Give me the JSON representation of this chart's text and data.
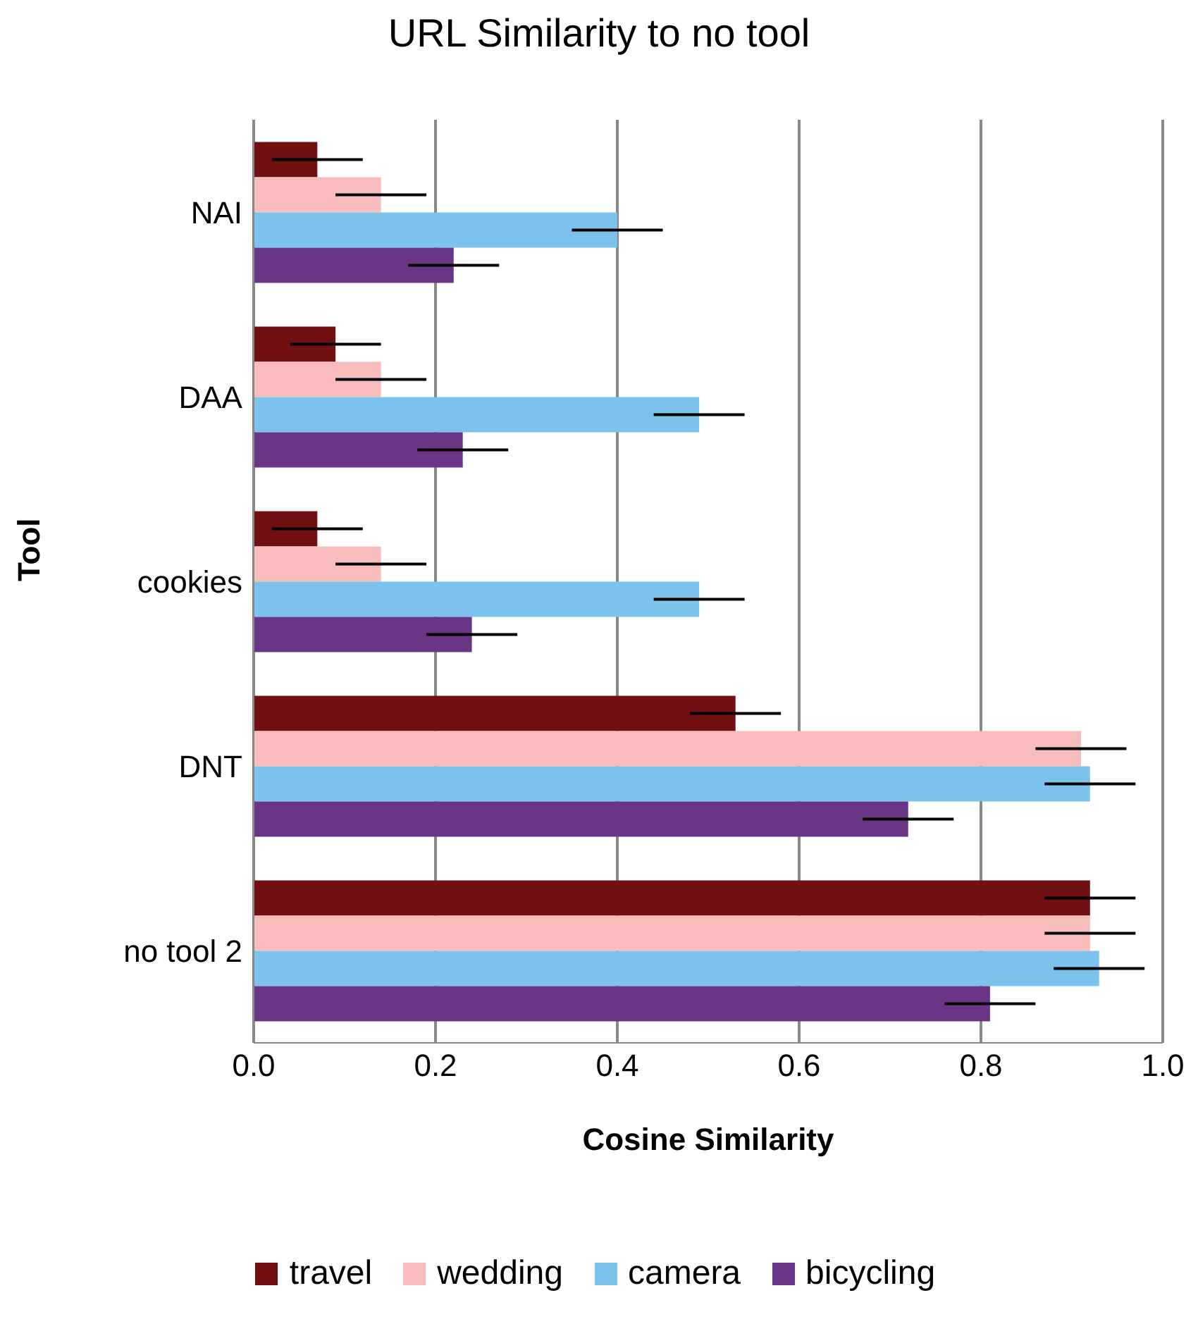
{
  "chart_data": {
    "type": "bar",
    "orientation": "horizontal",
    "title": "URL Similarity to no tool",
    "xlabel": "Cosine Similarity",
    "ylabel": "Tool",
    "categories": [
      "NAI",
      "DAA",
      "cookies",
      "DNT",
      "no tool 2"
    ],
    "series": [
      {
        "name": "travel",
        "color": "#701013",
        "values": [
          0.07,
          0.09,
          0.07,
          0.53,
          0.92
        ],
        "errors": [
          0.05,
          0.05,
          0.05,
          0.05,
          0.05
        ]
      },
      {
        "name": "wedding",
        "color": "#f7bcbb",
        "values": [
          0.14,
          0.14,
          0.14,
          0.91,
          0.92
        ],
        "errors": [
          0.05,
          0.05,
          0.05,
          0.05,
          0.05
        ]
      },
      {
        "name": "camera",
        "color": "#7dc2ed",
        "values": [
          0.4,
          0.49,
          0.49,
          0.92,
          0.93
        ],
        "errors": [
          0.05,
          0.05,
          0.05,
          0.05,
          0.05
        ]
      },
      {
        "name": "bicycling",
        "color": "#6a3585",
        "values": [
          0.22,
          0.23,
          0.24,
          0.72,
          0.81
        ],
        "errors": [
          0.05,
          0.05,
          0.05,
          0.05,
          0.05
        ]
      }
    ],
    "xlim": [
      0,
      1
    ],
    "xticks": [
      {
        "value": 0,
        "label": "0.0"
      },
      {
        "value": 0.2,
        "label": "0.2"
      },
      {
        "value": 0.4,
        "label": "0.4"
      },
      {
        "value": 0.6,
        "label": "0.6"
      },
      {
        "value": 0.8,
        "label": "0.8"
      },
      {
        "value": 1,
        "label": "1.0"
      }
    ],
    "grid": "x",
    "legend": "bottom"
  }
}
